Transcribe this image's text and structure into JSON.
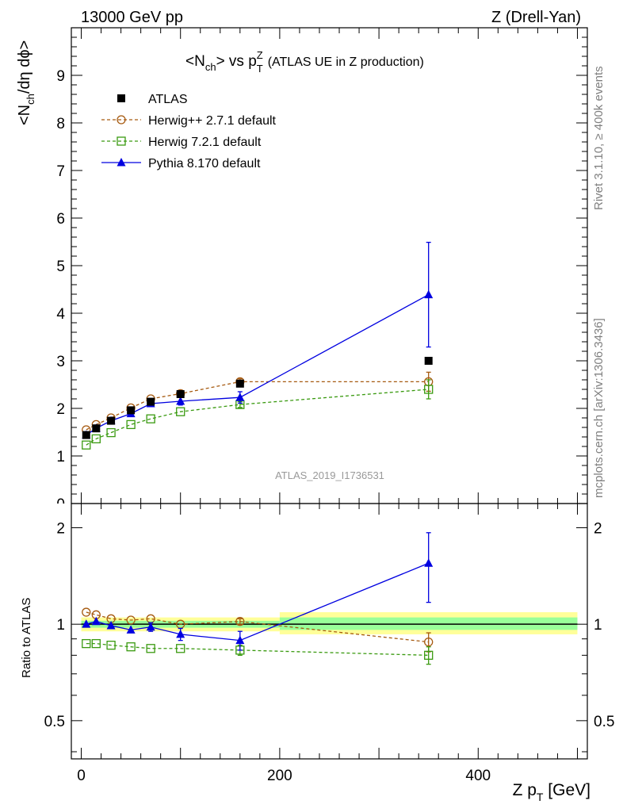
{
  "header": {
    "left": "13000 GeV pp",
    "right": "Z (Drell-Yan)"
  },
  "side_labels": {
    "rivet": "Rivet 3.1.10, ≥ 400k events",
    "mcplots": "mcplots.cern.ch [arXiv:1306.3436]"
  },
  "watermark": "ATLAS_2019_I1736531",
  "chart_data": [
    {
      "type": "line",
      "panel": "main",
      "title_main": "<N",
      "title_sub_ch": "ch",
      "title_rest": "> vs p",
      "title_sup": "Z",
      "title_sub_t": "T",
      "title_paren": "(ATLAS UE in Z production)",
      "ylabel": "<N_ch/dη dϕ>",
      "xlim": [
        -10,
        510
      ],
      "ylim": [
        0,
        10
      ],
      "yticks": [
        "1",
        "2",
        "3",
        "4",
        "5",
        "6",
        "7",
        "8",
        "9"
      ],
      "ytick_values": [
        1,
        2,
        3,
        4,
        5,
        6,
        7,
        8,
        9
      ],
      "bottom_tick_label": "0",
      "legend_placement": "top-left",
      "x": [
        5,
        15,
        30,
        50,
        70,
        100,
        160,
        350
      ],
      "series": [
        {
          "name": "ATLAS",
          "color": "#000000",
          "marker": "square-filled",
          "line": "none",
          "values": [
            1.44,
            1.58,
            1.74,
            1.96,
            2.14,
            2.3,
            2.52,
            3.0
          ]
        },
        {
          "name": "Herwig++ 2.7.1 default",
          "color": "#a65a10",
          "marker": "circle-open",
          "line": "dashed",
          "values": [
            1.55,
            1.66,
            1.8,
            2.01,
            2.2,
            2.31,
            2.56,
            2.56
          ],
          "err": [
            0,
            0,
            0,
            0,
            0,
            0,
            0.06,
            0.2
          ]
        },
        {
          "name": "Herwig 7.2.1 default",
          "color": "#3a9a10",
          "marker": "square-open",
          "line": "dashed",
          "values": [
            1.23,
            1.36,
            1.49,
            1.66,
            1.78,
            1.93,
            2.08,
            2.4
          ],
          "err": [
            0,
            0,
            0,
            0,
            0,
            0,
            0.06,
            0.2
          ]
        },
        {
          "name": "Pythia 8.170 default",
          "color": "#0000e0",
          "marker": "triangle-filled",
          "line": "solid",
          "values": [
            1.44,
            1.58,
            1.74,
            1.89,
            2.1,
            2.15,
            2.23,
            4.39
          ],
          "err": [
            0,
            0,
            0,
            0,
            0.05,
            0.08,
            0.12,
            1.1
          ]
        }
      ]
    },
    {
      "type": "line",
      "panel": "ratio",
      "ylabel": "Ratio to ATLAS",
      "xlabel_main": "Z p",
      "xlabel_sub": "T",
      "xlabel_unit": " [GeV]",
      "xlim": [
        -10,
        510
      ],
      "ylim": [
        0.38,
        2.38
      ],
      "yticks": [
        "0.5",
        "1",
        "2"
      ],
      "ytick_values": [
        0.5,
        1,
        2
      ],
      "xticks": [
        "0",
        "200",
        "400"
      ],
      "xtick_values": [
        0,
        200,
        400
      ],
      "x": [
        5,
        15,
        30,
        50,
        70,
        100,
        160,
        350
      ],
      "bands": [
        {
          "x0": 0,
          "x1": 200,
          "outer": [
            0.95,
            1.05
          ],
          "inner": [
            0.975,
            1.025
          ]
        },
        {
          "x0": 200,
          "x1": 500,
          "outer": [
            0.93,
            1.09
          ],
          "inner": [
            0.96,
            1.05
          ]
        }
      ],
      "series": [
        {
          "name": "Herwig++ 2.7.1 default",
          "color": "#a65a10",
          "marker": "circle-open",
          "line": "dashed",
          "values": [
            1.09,
            1.07,
            1.04,
            1.03,
            1.04,
            1.0,
            1.02,
            0.88
          ],
          "err": [
            0,
            0,
            0,
            0,
            0,
            0,
            0.02,
            0.06
          ]
        },
        {
          "name": "Herwig 7.2.1 default",
          "color": "#3a9a10",
          "marker": "square-open",
          "line": "dashed",
          "values": [
            0.87,
            0.87,
            0.86,
            0.85,
            0.84,
            0.84,
            0.83,
            0.8
          ],
          "err": [
            0,
            0,
            0,
            0,
            0,
            0,
            0.03,
            0.05
          ]
        },
        {
          "name": "Pythia 8.170 default",
          "color": "#0000e0",
          "marker": "triangle-filled",
          "line": "solid",
          "values": [
            1.0,
            1.02,
            0.99,
            0.96,
            0.98,
            0.93,
            0.89,
            1.55
          ],
          "err": [
            0,
            0,
            0,
            0,
            0.03,
            0.04,
            0.06,
            0.38
          ]
        }
      ]
    }
  ]
}
